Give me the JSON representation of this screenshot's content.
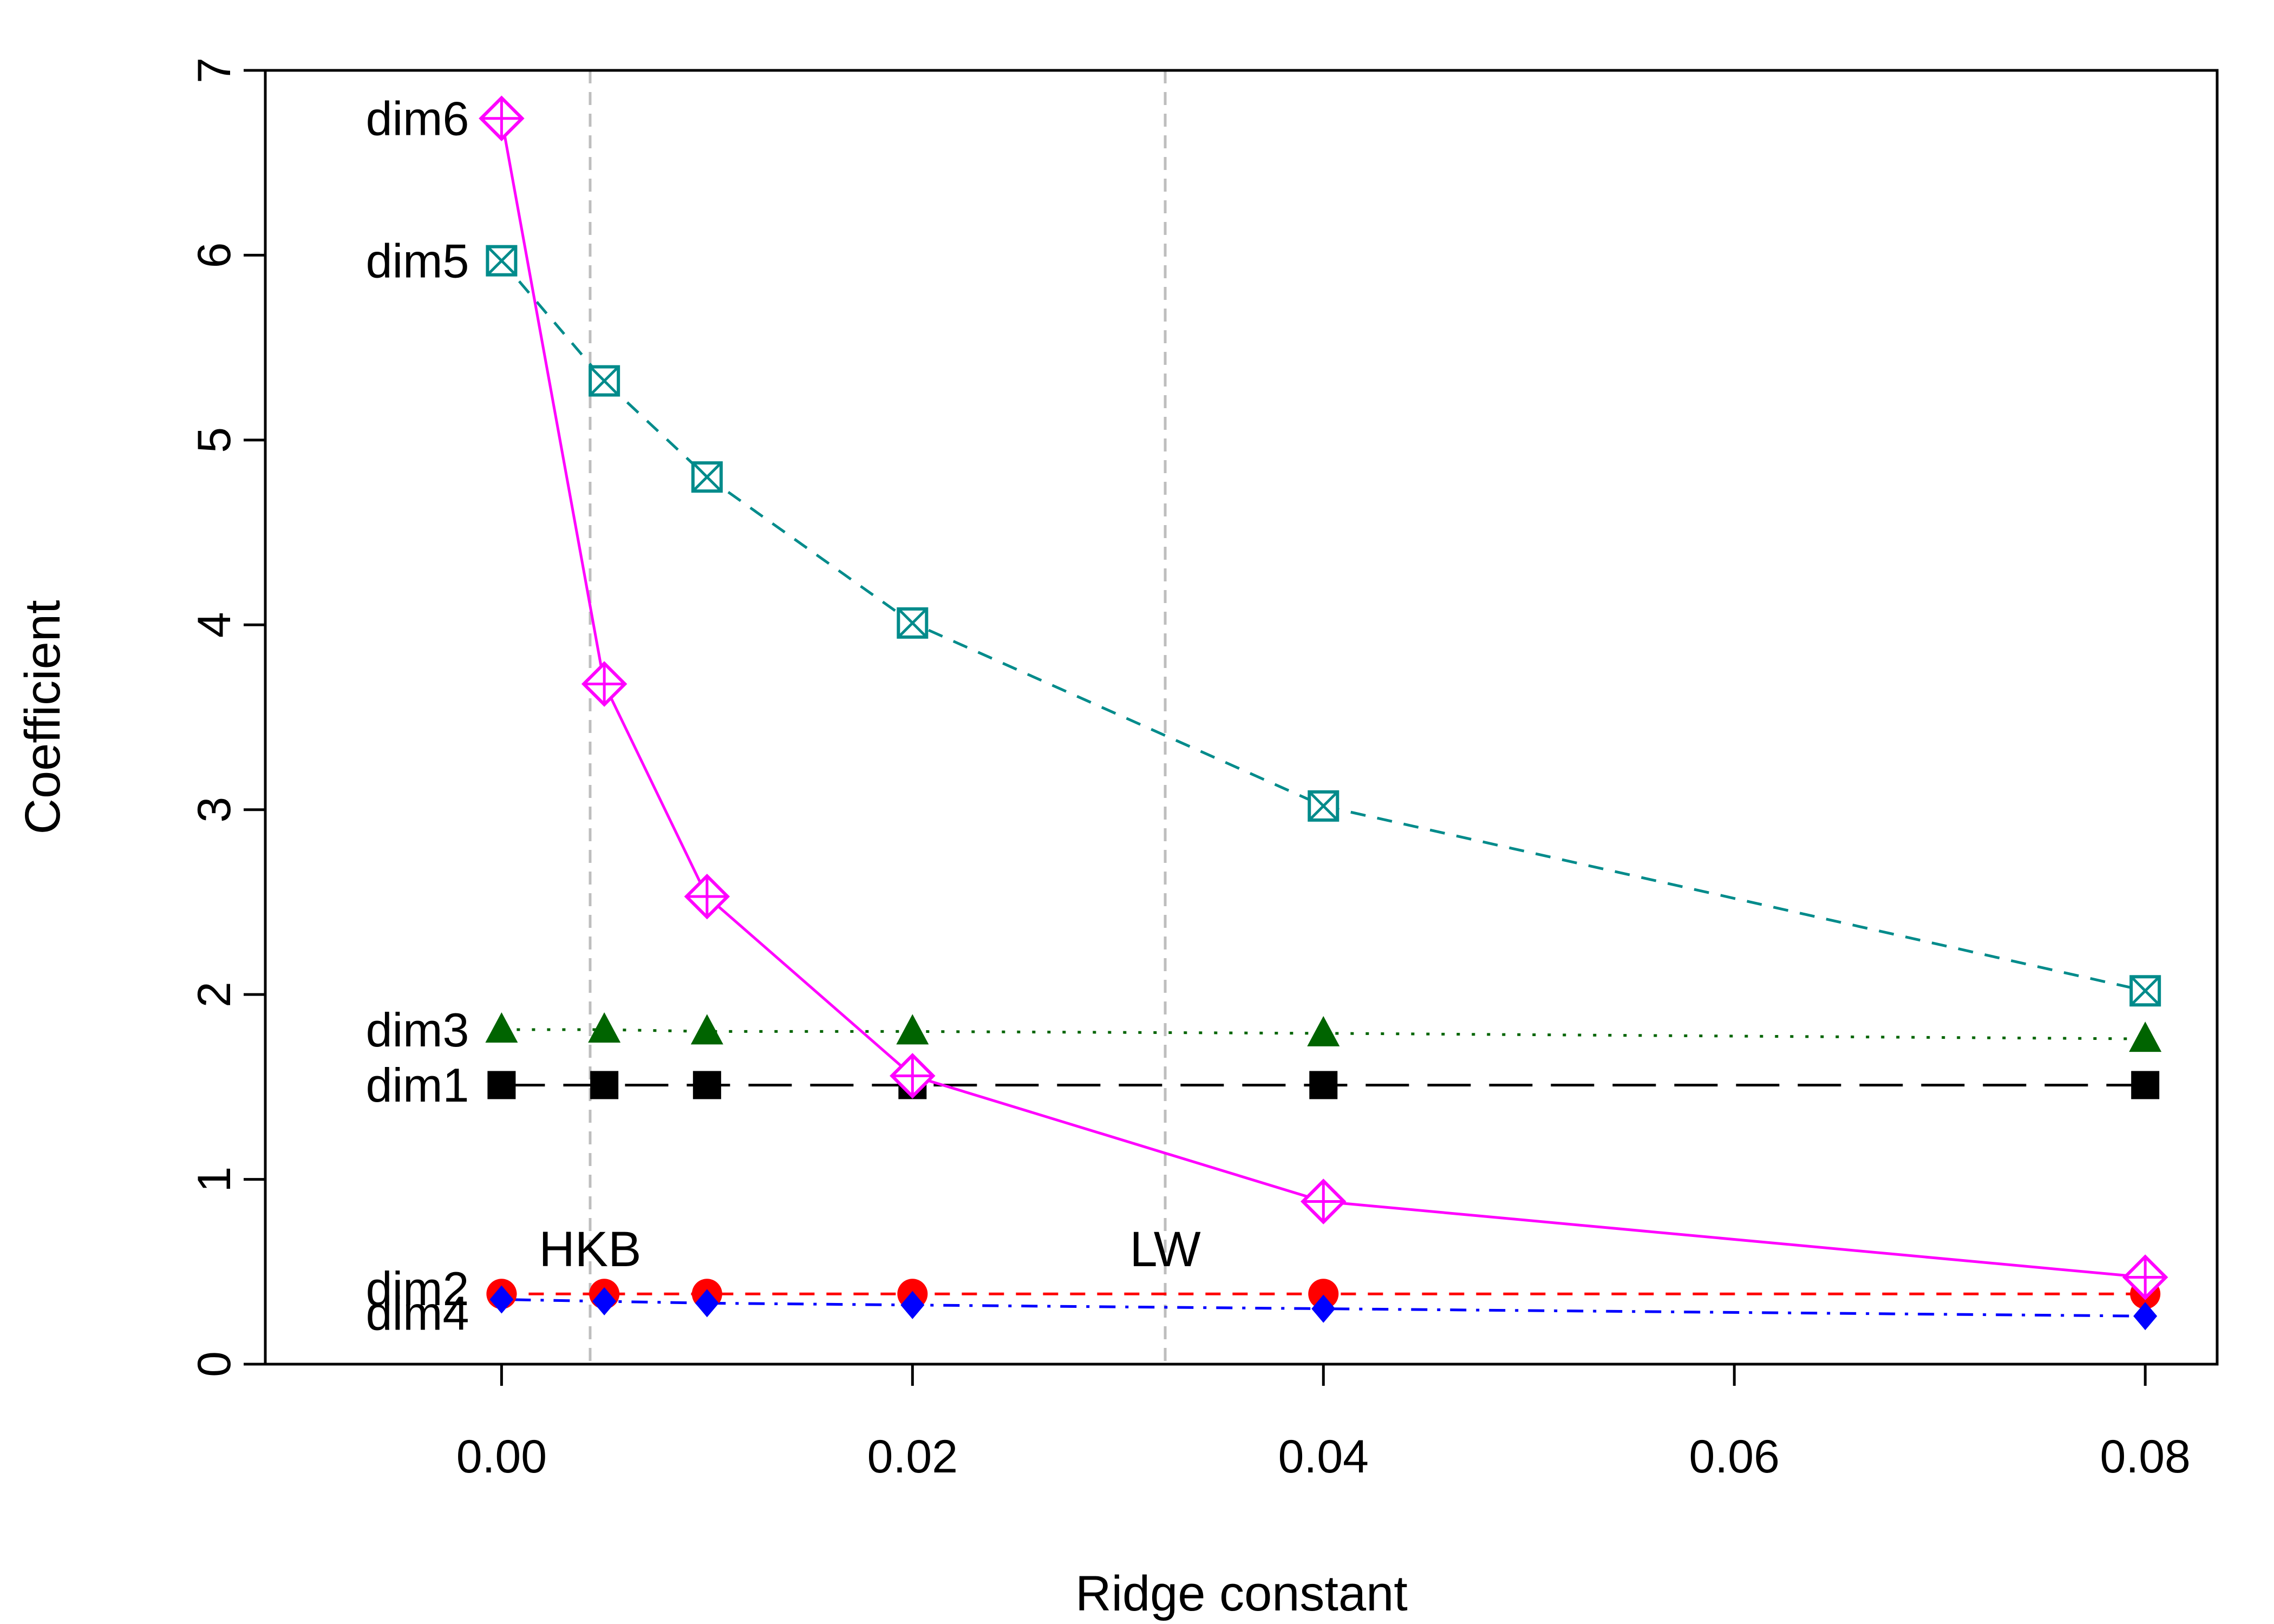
{
  "chart_data": {
    "type": "line",
    "title": "",
    "xlabel": "Ridge constant",
    "ylabel": "Coefficient",
    "xlim": [
      -0.0115,
      0.0835
    ],
    "ylim": [
      0,
      7
    ],
    "x_ticks": [
      0,
      0.02,
      0.04,
      0.06,
      0.08
    ],
    "x_tick_labels": [
      "0.00",
      "0.02",
      "0.04",
      "0.06",
      "0.08"
    ],
    "y_ticks": [
      0,
      1,
      2,
      3,
      4,
      5,
      6,
      7
    ],
    "y_tick_labels": [
      "0",
      "1",
      "2",
      "3",
      "4",
      "5",
      "6",
      "7"
    ],
    "grid": false,
    "x": [
      0,
      0.005,
      0.01,
      0.02,
      0.04,
      0.08
    ],
    "series": [
      {
        "name": "dim1",
        "values": [
          1.51,
          1.51,
          1.51,
          1.51,
          1.51,
          1.51
        ],
        "color": "#000000",
        "marker": "square",
        "dash": "longdash"
      },
      {
        "name": "dim2",
        "values": [
          0.38,
          0.38,
          0.38,
          0.38,
          0.38,
          0.38
        ],
        "color": "#ff0000",
        "marker": "circle",
        "dash": "dashed"
      },
      {
        "name": "dim3",
        "values": [
          1.81,
          1.81,
          1.8,
          1.8,
          1.79,
          1.76
        ],
        "color": "#006400",
        "marker": "triangle",
        "dash": "dotted"
      },
      {
        "name": "dim4",
        "values": [
          0.35,
          0.34,
          0.33,
          0.32,
          0.3,
          0.26
        ],
        "color": "#0000ff",
        "marker": "diamond",
        "dash": "dotdash"
      },
      {
        "name": "dim5",
        "values": [
          5.97,
          5.32,
          4.8,
          4.01,
          3.02,
          2.02
        ],
        "color": "#008b8b",
        "marker": "boxcross",
        "dash": "dashed"
      },
      {
        "name": "dim6",
        "values": [
          6.74,
          3.68,
          2.53,
          1.56,
          0.88,
          0.47
        ],
        "color": "#ff00ff",
        "marker": "circleplus",
        "dash": "solid"
      }
    ],
    "reference_lines": [
      {
        "label": "HKB",
        "x": 0.00431
      },
      {
        "label": "LW",
        "x": 0.0323
      }
    ],
    "reference_line_color": "#bebebe"
  }
}
